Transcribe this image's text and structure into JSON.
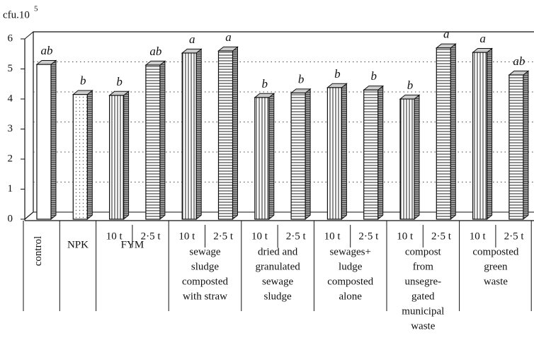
{
  "chart_data": {
    "type": "bar3d",
    "y_label": "cfu.10",
    "y_label_exponent": "5",
    "categories": [
      null,
      null,
      "10 t",
      "2·5 t",
      "10 t",
      "2·5 t",
      "10 t",
      "2·5 t",
      "10 t",
      "2·5 t",
      "10 t",
      "2·5 t",
      "10 t",
      "2·5 t"
    ],
    "values": [
      5.15,
      4.15,
      4.12,
      5.13,
      5.53,
      5.6,
      4.05,
      4.2,
      4.38,
      4.3,
      4.0,
      5.7,
      5.55,
      4.8
    ],
    "letters": [
      "ab",
      "b",
      "b",
      "ab",
      "a",
      "a",
      "b",
      "b",
      "b",
      "b",
      "b",
      "a",
      "a",
      "ab"
    ],
    "patterns": [
      "plain",
      "dots",
      "vlines",
      "hlines",
      "vlines",
      "hlines",
      "vlines",
      "hlines",
      "vlines",
      "hlines",
      "vlines",
      "hlines",
      "vlines",
      "hlines"
    ],
    "groups": [
      {
        "lines": [
          "control"
        ],
        "vertical": true
      },
      {
        "lines": [
          "NPK"
        ]
      },
      {
        "lines": [
          "FYM"
        ]
      },
      {
        "lines": [
          "sewage",
          "sludge",
          "composted",
          "with straw"
        ]
      },
      {
        "lines": [
          "dried and",
          "granulated",
          "sewage",
          "sludge"
        ]
      },
      {
        "lines": [
          "sewages+",
          "ludge",
          "composted",
          "alone"
        ]
      },
      {
        "lines": [
          "compost",
          "from",
          "unsegre-",
          "gated",
          "municipal",
          "waste"
        ]
      },
      {
        "lines": [
          "composted",
          "green",
          "waste"
        ]
      }
    ],
    "ylim": [
      0,
      6
    ],
    "yticks": [
      0,
      1,
      2,
      3,
      4,
      5,
      6
    ],
    "grid": true
  }
}
